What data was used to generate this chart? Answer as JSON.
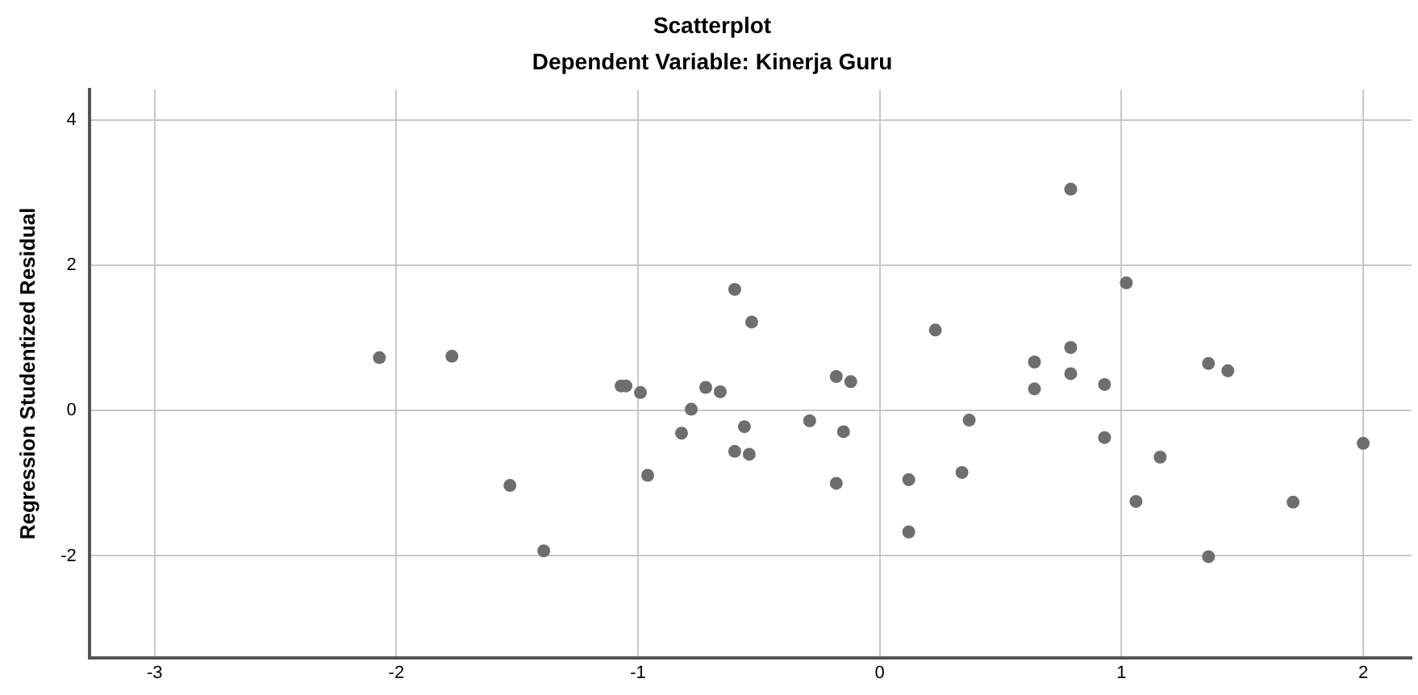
{
  "chart_data": {
    "type": "scatter",
    "title": "Scatterplot",
    "subtitle": "Dependent Variable: Kinerja Guru",
    "ylabel": "Regression Studentized Residual",
    "xlim": [
      -3.27,
      2.2
    ],
    "xticks": [
      -3,
      -2,
      -1,
      0,
      1,
      2
    ],
    "ylim": [
      -3.4,
      4.42
    ],
    "yticks": [
      -2,
      0,
      2,
      4
    ],
    "grid": true,
    "marker": "circle",
    "series": [
      {
        "color": "#6e6e6e",
        "x": [
          -2.07,
          -1.77,
          -1.53,
          -1.39,
          -1.07,
          -1.05,
          -0.99,
          -0.96,
          -0.82,
          -0.78,
          -0.72,
          -0.66,
          -0.6,
          -0.56,
          -0.6,
          -0.54,
          -0.53,
          -0.29,
          -0.18,
          -0.12,
          -0.15,
          -0.18,
          0.12,
          0.12,
          0.23,
          0.34,
          0.37,
          0.64,
          0.64,
          0.79,
          0.79,
          0.79,
          0.93,
          0.93,
          1.02,
          1.06,
          1.16,
          1.36,
          1.44,
          1.36,
          1.71,
          2.0
        ],
        "values": [
          0.73,
          0.75,
          -1.03,
          -1.93,
          0.34,
          0.34,
          0.25,
          -0.89,
          -0.31,
          0.02,
          0.32,
          0.26,
          1.67,
          -0.22,
          -0.56,
          -0.6,
          1.22,
          -0.14,
          0.47,
          0.4,
          -0.29,
          -1.0,
          -0.95,
          -1.67,
          1.11,
          -0.85,
          -0.13,
          0.67,
          0.3,
          3.05,
          0.87,
          0.51,
          0.36,
          -0.37,
          1.76,
          -1.25,
          -0.64,
          0.65,
          0.55,
          -2.01,
          -1.26,
          -0.45
        ]
      }
    ]
  }
}
